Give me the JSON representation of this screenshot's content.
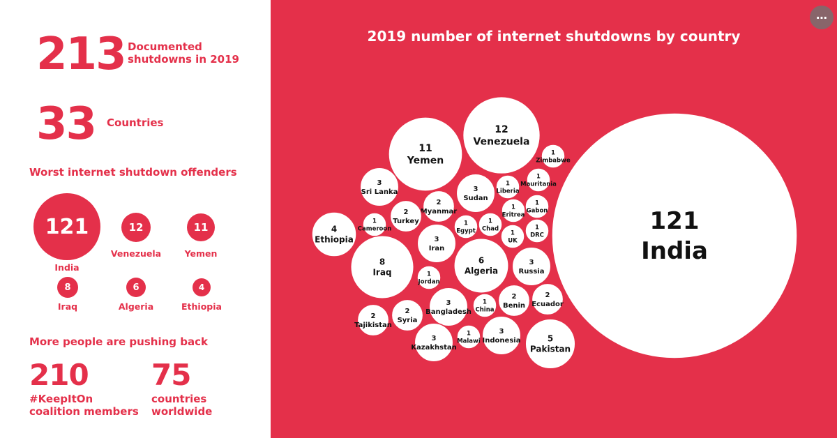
{
  "stats": {
    "shutdowns": {
      "value": "213",
      "label_line1": "Documented",
      "label_line2": "shutdowns in 2019"
    },
    "countries": {
      "value": "33",
      "label": "Countries"
    },
    "offenders_heading": "Worst internet shutdown offenders",
    "offenders": [
      {
        "value": "121",
        "country": "India"
      },
      {
        "value": "12",
        "country": "Venezuela"
      },
      {
        "value": "11",
        "country": "Yemen"
      },
      {
        "value": "8",
        "country": "Iraq"
      },
      {
        "value": "6",
        "country": "Algeria"
      },
      {
        "value": "4",
        "country": "Ethiopia"
      }
    ],
    "pushback_heading": "More people are pushing back",
    "coalition": {
      "value": "210",
      "label_line1": "#KeepItOn",
      "label_line2": "coalition members"
    },
    "worldwide": {
      "value": "75",
      "label_line1": "countries",
      "label_line2": "worldwide"
    }
  },
  "colors": {
    "accent": "#e4304a",
    "bubble": "#ffffff",
    "text": "#111111"
  },
  "menu_icon": "more-horizontal-icon",
  "chart_data": {
    "type": "bubble",
    "title": "2019 number of internet shutdowns by country",
    "points": [
      {
        "country": "India",
        "value": 121
      },
      {
        "country": "Venezuela",
        "value": 12
      },
      {
        "country": "Yemen",
        "value": 11
      },
      {
        "country": "Iraq",
        "value": 8
      },
      {
        "country": "Algeria",
        "value": 6
      },
      {
        "country": "Pakistan",
        "value": 5
      },
      {
        "country": "Ethiopia",
        "value": 4
      },
      {
        "country": "Sri Lanka",
        "value": 3
      },
      {
        "country": "Sudan",
        "value": 3
      },
      {
        "country": "Iran",
        "value": 3
      },
      {
        "country": "Russia",
        "value": 3
      },
      {
        "country": "Bangladesh",
        "value": 3
      },
      {
        "country": "Kazakhstan",
        "value": 3
      },
      {
        "country": "Indonesia",
        "value": 3
      },
      {
        "country": "Myanmar",
        "value": 2
      },
      {
        "country": "Turkey",
        "value": 2
      },
      {
        "country": "Benin",
        "value": 2
      },
      {
        "country": "Ecuador",
        "value": 2
      },
      {
        "country": "Tajikistan",
        "value": 2
      },
      {
        "country": "Syria",
        "value": 2
      },
      {
        "country": "Zimbabwe",
        "value": 1
      },
      {
        "country": "Mauritania",
        "value": 1
      },
      {
        "country": "Liberia",
        "value": 1
      },
      {
        "country": "Gabon",
        "value": 1
      },
      {
        "country": "Eritrea",
        "value": 1
      },
      {
        "country": "Cameroon",
        "value": 1
      },
      {
        "country": "Egypt",
        "value": 1
      },
      {
        "country": "Chad",
        "value": 1
      },
      {
        "country": "DRC",
        "value": 1
      },
      {
        "country": "UK",
        "value": 1
      },
      {
        "country": "Jordan",
        "value": 1
      },
      {
        "country": "China",
        "value": 1
      },
      {
        "country": "Malawi",
        "value": 1
      }
    ]
  }
}
